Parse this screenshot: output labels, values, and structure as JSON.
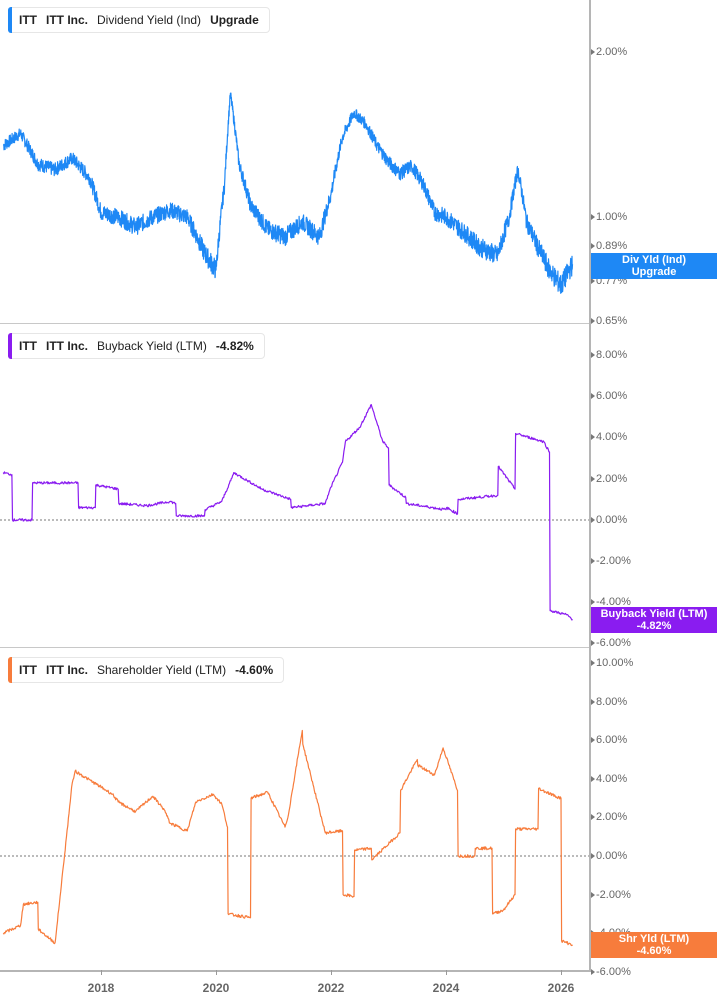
{
  "chart_data": [
    {
      "type": "line",
      "title": "ITT  ITT Inc.  Dividend Yield (Ind)",
      "legend": {
        "ticker": "ITT",
        "name": "ITT Inc.",
        "metric": "Dividend Yield (Ind)",
        "value": "Upgrade"
      },
      "color": "#1e88f5",
      "scale": "log",
      "yticks": [
        "2.00%",
        "1.00%",
        "0.89%",
        "0.77%",
        "0.65%"
      ],
      "ylim": [
        0.65,
        2.3
      ],
      "flag": {
        "line1": "Div Yld (Ind)",
        "line2": "Upgrade"
      },
      "x": [
        2016.3,
        2016.6,
        2016.9,
        2017.2,
        2017.5,
        2017.8,
        2018.0,
        2018.3,
        2018.6,
        2018.9,
        2019.2,
        2019.5,
        2019.8,
        2020.0,
        2020.15,
        2020.25,
        2020.4,
        2020.6,
        2020.9,
        2021.2,
        2021.5,
        2021.8,
        2022.0,
        2022.2,
        2022.4,
        2022.6,
        2022.8,
        2023.0,
        2023.2,
        2023.4,
        2023.6,
        2023.8,
        2024.0,
        2024.3,
        2024.6,
        2024.9,
        2025.1,
        2025.25,
        2025.4,
        2025.6,
        2025.8,
        2026.0,
        2026.2
      ],
      "values": [
        1.35,
        1.42,
        1.25,
        1.22,
        1.28,
        1.18,
        1.02,
        1.0,
        0.96,
        1.0,
        1.03,
        1.0,
        0.86,
        0.8,
        1.15,
        1.68,
        1.25,
        1.05,
        0.95,
        0.92,
        0.98,
        0.92,
        1.1,
        1.4,
        1.55,
        1.48,
        1.35,
        1.26,
        1.2,
        1.24,
        1.15,
        1.02,
        1.0,
        0.94,
        0.88,
        0.85,
        1.0,
        1.22,
        0.98,
        0.88,
        0.8,
        0.75,
        0.82
      ]
    },
    {
      "type": "line",
      "title": "ITT  ITT Inc.  Buyback Yield (LTM)",
      "legend": {
        "ticker": "ITT",
        "name": "ITT Inc.",
        "metric": "Buyback Yield (LTM)",
        "value": "-4.82%"
      },
      "color": "#8a1cf0",
      "yticks": [
        "8.00%",
        "6.00%",
        "4.00%",
        "2.00%",
        "0.00%",
        "-2.00%",
        "-4.00%",
        "-6.00%"
      ],
      "ylim": [
        -6,
        8
      ],
      "flag": {
        "line1": "Buyback Yield (LTM)",
        "line2": "-4.82%"
      },
      "x": [
        2016.3,
        2016.45,
        2016.46,
        2016.8,
        2016.81,
        2017.3,
        2017.6,
        2017.61,
        2017.9,
        2017.91,
        2018.3,
        2018.31,
        2018.8,
        2019.2,
        2019.3,
        2019.31,
        2019.8,
        2019.81,
        2020.1,
        2020.3,
        2020.31,
        2020.8,
        2021.3,
        2021.31,
        2021.9,
        2022.0,
        2022.2,
        2022.25,
        2022.5,
        2022.7,
        2022.9,
        2023.0,
        2023.01,
        2023.3,
        2023.31,
        2024.0,
        2024.01,
        2024.2,
        2024.21,
        2024.9,
        2024.91,
        2025.2,
        2025.21,
        2025.7,
        2025.8,
        2025.81,
        2026.1,
        2026.2
      ],
      "values": [
        2.3,
        2.2,
        0.0,
        0.0,
        1.8,
        1.8,
        1.8,
        0.6,
        0.6,
        1.7,
        1.5,
        0.8,
        0.7,
        0.9,
        0.8,
        0.2,
        0.2,
        0.5,
        0.9,
        2.2,
        2.3,
        1.5,
        1.0,
        0.6,
        0.8,
        1.6,
        2.8,
        3.8,
        4.5,
        5.6,
        3.8,
        3.5,
        1.7,
        1.1,
        0.8,
        0.5,
        0.6,
        0.3,
        1.0,
        1.2,
        2.6,
        1.5,
        4.2,
        3.8,
        3.3,
        -4.4,
        -4.6,
        -4.82
      ]
    },
    {
      "type": "line",
      "title": "ITT  ITT Inc.  Shareholder Yield (LTM)",
      "legend": {
        "ticker": "ITT",
        "name": "ITT Inc.",
        "metric": "Shareholder Yield (LTM)",
        "value": "-4.60%"
      },
      "color": "#f77c3c",
      "yticks": [
        "10.00%",
        "8.00%",
        "6.00%",
        "4.00%",
        "2.00%",
        "0.00%",
        "-2.00%",
        "-4.00%",
        "-6.00%"
      ],
      "ylim": [
        -6,
        10
      ],
      "flag": {
        "line1": "Shr Yld (LTM)",
        "line2": "-4.60%"
      },
      "x": [
        2016.3,
        2016.6,
        2016.65,
        2016.9,
        2016.91,
        2017.2,
        2017.21,
        2017.5,
        2017.55,
        2018.2,
        2018.3,
        2018.6,
        2018.9,
        2019.1,
        2019.2,
        2019.5,
        2019.65,
        2019.95,
        2020.1,
        2020.2,
        2020.21,
        2020.6,
        2020.61,
        2020.9,
        2021.2,
        2021.25,
        2021.5,
        2021.51,
        2021.9,
        2022.2,
        2022.21,
        2022.4,
        2022.41,
        2022.7,
        2022.71,
        2023.2,
        2023.21,
        2023.5,
        2023.51,
        2023.8,
        2023.95,
        2024.2,
        2024.21,
        2024.5,
        2024.51,
        2024.8,
        2024.81,
        2025.0,
        2025.2,
        2025.21,
        2025.6,
        2025.61,
        2025.9,
        2026.0,
        2026.01,
        2026.2
      ],
      "values": [
        -4.0,
        -3.6,
        -2.5,
        -2.4,
        -3.8,
        -4.5,
        -4.3,
        3.8,
        4.4,
        3.2,
        2.8,
        2.3,
        3.1,
        2.4,
        1.7,
        1.3,
        2.8,
        3.2,
        2.7,
        1.5,
        -3.0,
        -3.2,
        3.0,
        3.3,
        1.5,
        2.0,
        6.5,
        5.8,
        1.2,
        1.3,
        -2.0,
        -2.1,
        0.3,
        0.4,
        -0.2,
        1.2,
        3.4,
        5.0,
        4.7,
        4.2,
        5.6,
        3.4,
        0.0,
        0.0,
        0.4,
        0.4,
        -3.0,
        -2.8,
        -2.0,
        1.4,
        1.4,
        3.5,
        3.1,
        3.0,
        -4.4,
        -4.6
      ]
    }
  ],
  "x_axis": {
    "labels": [
      "2018",
      "2020",
      "2022",
      "2024",
      "2026"
    ]
  },
  "panels": [
    {
      "legend": {
        "ticker": "ITT",
        "name": "ITT Inc.",
        "metric": "Dividend Yield (Ind)",
        "value": "Upgrade"
      },
      "flag": {
        "line1": "Div Yld (Ind)",
        "line2": "Upgrade"
      },
      "color": "#1e88f5",
      "yticks": [
        "2.00%",
        "1.00%",
        "0.89%",
        "0.77%",
        "0.65%"
      ]
    },
    {
      "legend": {
        "ticker": "ITT",
        "name": "ITT Inc.",
        "metric": "Buyback Yield (LTM)",
        "value": "-4.82%"
      },
      "flag": {
        "line1": "Buyback Yield (LTM)",
        "line2": "-4.82%"
      },
      "color": "#8a1cf0",
      "yticks": [
        "8.00%",
        "6.00%",
        "4.00%",
        "2.00%",
        "0.00%",
        "-2.00%",
        "-4.00%",
        "-6.00%"
      ]
    },
    {
      "legend": {
        "ticker": "ITT",
        "name": "ITT Inc.",
        "metric": "Shareholder Yield (LTM)",
        "value": "-4.60%"
      },
      "flag": {
        "line1": "Shr Yld (LTM)",
        "line2": "-4.60%"
      },
      "color": "#f77c3c",
      "yticks": [
        "10.00%",
        "8.00%",
        "6.00%",
        "4.00%",
        "2.00%",
        "0.00%",
        "-2.00%",
        "-4.00%",
        "-6.00%"
      ]
    }
  ]
}
